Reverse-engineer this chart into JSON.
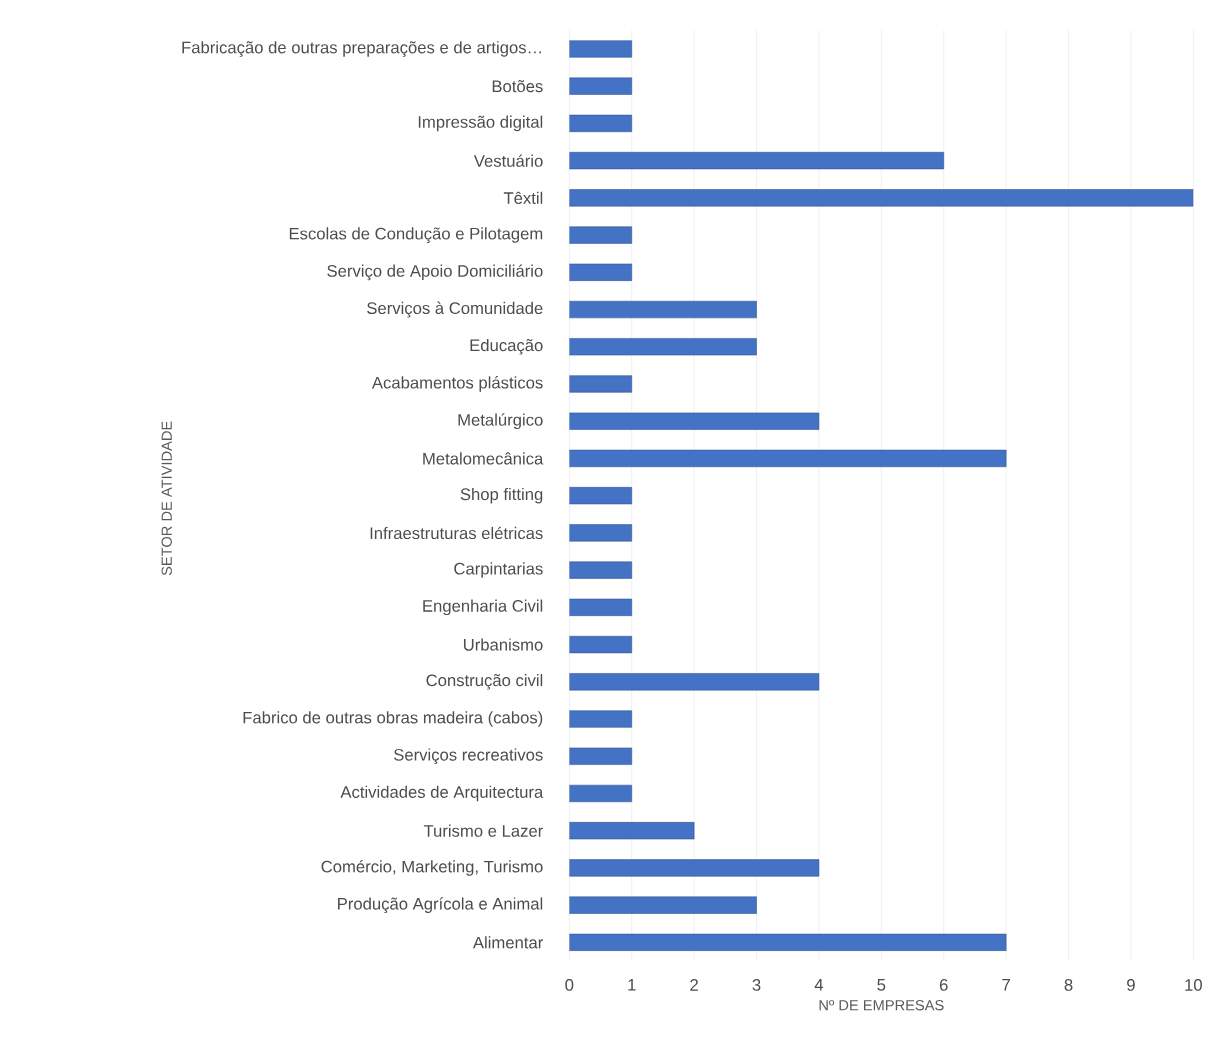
{
  "chart_data": {
    "type": "bar",
    "orientation": "horizontal",
    "xlabel": "Nº DE EMPRESAS",
    "ylabel": "SETOR DE ATIVIDADE",
    "categories": [
      "Fabricação de outras preparações e de artigos…",
      "Botões",
      "Impressão digital",
      "Vestuário",
      "Têxtil",
      "Escolas de Condução e Pilotagem",
      "Serviço de Apoio Domiciliário",
      "Serviços à Comunidade",
      "Educação",
      "Acabamentos plásticos",
      "Metalúrgico",
      "Metalomecânica",
      "Shop fitting",
      "Infraestruturas elétricas",
      "Carpintarias",
      "Engenharia Civil",
      "Urbanismo",
      "Construção civil",
      "Fabrico de outras obras madeira (cabos)",
      "Serviços recreativos",
      "Actividades de Arquitectura",
      "Turismo e Lazer",
      "Comércio, Marketing, Turismo",
      "Produção Agrícola e Animal",
      "Alimentar"
    ],
    "values": [
      1,
      1,
      1,
      6,
      10,
      1,
      1,
      3,
      3,
      1,
      4,
      7,
      1,
      1,
      1,
      1,
      1,
      4,
      1,
      1,
      1,
      2,
      4,
      3,
      7
    ],
    "color": "#4472c4",
    "xlim": [
      0,
      10
    ],
    "xticks": [
      0,
      1,
      2,
      3,
      4,
      5,
      6,
      7,
      8,
      9,
      10
    ],
    "grid": "x"
  }
}
